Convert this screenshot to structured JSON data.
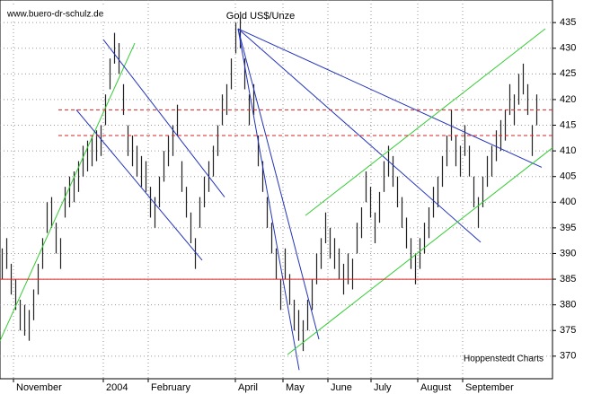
{
  "chart_data": {
    "type": "hilo",
    "title": "Gold US$/Unze",
    "source": "www.buero-dr-schulz.de",
    "credit": "Hoppenstedt Charts",
    "xlim": [
      0,
      123
    ],
    "ylim": [
      365.6,
      439.4
    ],
    "yticks": [
      370,
      375,
      380,
      385,
      390,
      395,
      400,
      405,
      410,
      415,
      420,
      425,
      430,
      435
    ],
    "xticks": [
      {
        "value": 3,
        "label": "November"
      },
      {
        "value": 23,
        "label": "2004"
      },
      {
        "value": 33,
        "label": "February"
      },
      {
        "value": 52.4,
        "label": "April"
      },
      {
        "value": 63,
        "label": "May"
      },
      {
        "value": 73,
        "label": "June"
      },
      {
        "value": 82.6,
        "label": "July"
      },
      {
        "value": 93,
        "label": "August"
      },
      {
        "value": 103,
        "label": "September"
      }
    ],
    "grid": true,
    "color": "#222222",
    "high": [
      391,
      393,
      388,
      385,
      381,
      380,
      379,
      383,
      388,
      393,
      400,
      401,
      396,
      393,
      403,
      405,
      406,
      408,
      411,
      412,
      413,
      414,
      415,
      421,
      428,
      433,
      431,
      423,
      415,
      413,
      411,
      409,
      408,
      403,
      401,
      405,
      410,
      413,
      415,
      419,
      408,
      403,
      398,
      393,
      401,
      405,
      408,
      411,
      415,
      421,
      423,
      428,
      435,
      436,
      428,
      421,
      423,
      413,
      408,
      401,
      396,
      391,
      385,
      391,
      386,
      381,
      379,
      377,
      381,
      385,
      390,
      393,
      398,
      395,
      393,
      391,
      388,
      390,
      389,
      396,
      399,
      406,
      403,
      398,
      402,
      408,
      411,
      409,
      405,
      401,
      397,
      393,
      390,
      393,
      396,
      399,
      403,
      405,
      409,
      413,
      418,
      413,
      411,
      415,
      411,
      405,
      401,
      405,
      409,
      411,
      414,
      416,
      418,
      423,
      421,
      425,
      427,
      423,
      415,
      421
    ],
    "low": [
      385,
      387,
      382,
      379,
      375,
      374,
      373,
      377,
      382,
      387,
      394,
      395,
      390,
      387,
      397,
      399,
      400,
      402,
      405,
      406,
      407,
      408,
      409,
      415,
      422,
      427,
      425,
      417,
      409,
      407,
      405,
      403,
      402,
      397,
      395,
      399,
      404,
      407,
      409,
      413,
      402,
      397,
      392,
      387,
      395,
      399,
      402,
      405,
      409,
      415,
      417,
      422,
      429,
      430,
      422,
      415,
      417,
      407,
      402,
      395,
      390,
      385,
      379,
      385,
      380,
      375,
      373,
      371,
      375,
      379,
      384,
      387,
      392,
      389,
      387,
      385,
      382,
      384,
      383,
      390,
      393,
      400,
      397,
      392,
      396,
      402,
      405,
      403,
      399,
      395,
      391,
      387,
      384,
      387,
      390,
      393,
      397,
      399,
      403,
      407,
      412,
      407,
      405,
      409,
      405,
      399,
      395,
      399,
      403,
      405,
      408,
      410,
      412,
      417,
      415,
      419,
      421,
      417,
      409,
      415
    ],
    "lines": [
      {
        "x": [
          0,
          30
        ],
        "y": [
          373,
          431
        ],
        "color": "#33cc33",
        "dash": false
      },
      {
        "x": [
          23,
          50
        ],
        "y": [
          431.7,
          401
        ],
        "color": "#2233bb",
        "dash": false
      },
      {
        "x": [
          17,
          45
        ],
        "y": [
          418,
          388.7
        ],
        "color": "#2233bb",
        "dash": false
      },
      {
        "x": [
          53,
          66.6
        ],
        "y": [
          433.8,
          367.3
        ],
        "color": "#2233bb",
        "dash": false
      },
      {
        "x": [
          53,
          71
        ],
        "y": [
          433.8,
          373.3
        ],
        "color": "#2233bb",
        "dash": false
      },
      {
        "x": [
          53,
          107
        ],
        "y": [
          433.8,
          392.2
        ],
        "color": "#2233bb",
        "dash": false
      },
      {
        "x": [
          53,
          120.6
        ],
        "y": [
          433.8,
          406.8
        ],
        "color": "#2233bb",
        "dash": false
      },
      {
        "x": [
          68,
          121.4
        ],
        "y": [
          397.4,
          433.8
        ],
        "color": "#33cc33",
        "dash": false
      },
      {
        "x": [
          64,
          123
        ],
        "y": [
          370.3,
          410.6
        ],
        "color": "#33cc33",
        "dash": false
      },
      {
        "x": [
          0,
          123
        ],
        "y": [
          385,
          385
        ],
        "color": "#dd2222",
        "dash": false
      },
      {
        "x": [
          13,
          123
        ],
        "y": [
          418,
          418
        ],
        "color": "#dd2222",
        "dash": true
      },
      {
        "x": [
          13,
          123
        ],
        "y": [
          413,
          413
        ],
        "color": "#dd2222",
        "dash": true
      }
    ]
  }
}
